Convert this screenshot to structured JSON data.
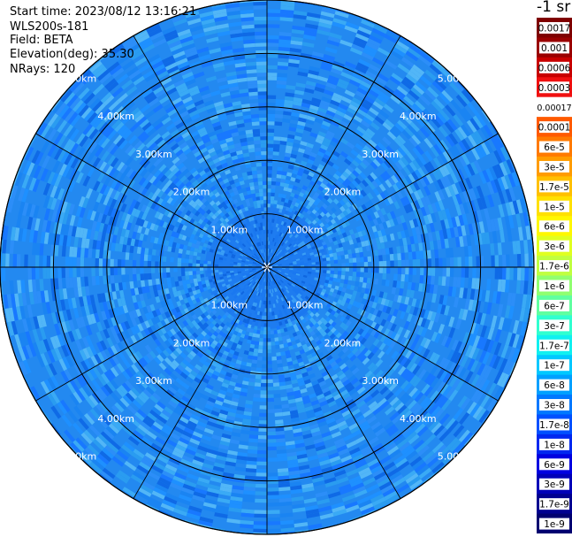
{
  "header": {
    "start_time": "Start time: 2023/08/12 13:16:21",
    "instrument": "WLS200s-181",
    "field": "Field: BETA",
    "elevation": "Elevation(deg): 35.30",
    "nrays": "NRays: 120"
  },
  "chart_data": {
    "type": "heatmap",
    "projection": "polar",
    "field": "BETA",
    "elevation_deg": 35.3,
    "n_rays": 120,
    "range_rings": [
      "1.00km",
      "2.00km",
      "3.00km",
      "4.00km",
      "5.00km"
    ],
    "max_range_km": 5.0,
    "spokes_deg": [
      0,
      30,
      60,
      90,
      120,
      150,
      180,
      210,
      240,
      270,
      300,
      330
    ],
    "value_typical_range": [
      "3e-8",
      "1e-7"
    ],
    "colorbar": {
      "unit": "-1 sr",
      "levels": [
        {
          "label": "0.0017",
          "color": "#7f0000"
        },
        {
          "label": "0.001",
          "color": "#9a0000"
        },
        {
          "label": "0.0006",
          "color": "#c80000"
        },
        {
          "label": "0.0003",
          "color": "#f01010"
        },
        {
          "label": "0.00017",
          "color": "#ffffff"
        },
        {
          "label": "0.0001",
          "color": "#ff5a00"
        },
        {
          "label": "6e-5",
          "color": "#ff7a00"
        },
        {
          "label": "3e-5",
          "color": "#ff9c00"
        },
        {
          "label": "1.7e-5",
          "color": "#ffc000"
        },
        {
          "label": "1e-5",
          "color": "#ffe000"
        },
        {
          "label": "6e-6",
          "color": "#fff700"
        },
        {
          "label": "3e-6",
          "color": "#e0ff20"
        },
        {
          "label": "1.7e-6",
          "color": "#c0ff40"
        },
        {
          "label": "1e-6",
          "color": "#90ff70"
        },
        {
          "label": "6e-7",
          "color": "#60ffa0"
        },
        {
          "label": "3e-7",
          "color": "#30ffd0"
        },
        {
          "label": "1.7e-7",
          "color": "#10f0f0"
        },
        {
          "label": "1e-7",
          "color": "#00c8ff"
        },
        {
          "label": "6e-8",
          "color": "#00a0ff"
        },
        {
          "label": "3e-8",
          "color": "#0078ff"
        },
        {
          "label": "1.7e-8",
          "color": "#0050ff"
        },
        {
          "label": "1e-8",
          "color": "#0028f0"
        },
        {
          "label": "6e-9",
          "color": "#0000e0"
        },
        {
          "label": "3e-9",
          "color": "#0000b8"
        },
        {
          "label": "1.7e-9",
          "color": "#000090"
        },
        {
          "label": "1e-9",
          "color": "#000070"
        }
      ]
    }
  }
}
